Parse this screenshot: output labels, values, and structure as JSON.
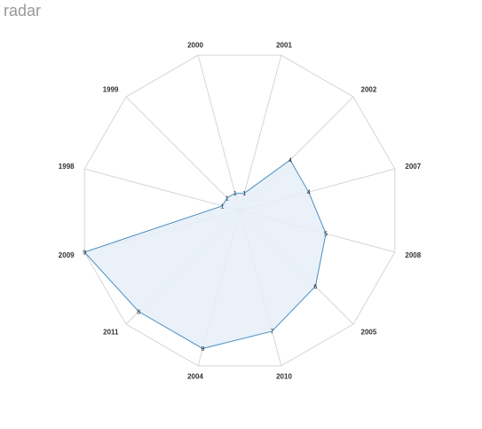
{
  "title": "radar",
  "chart_data": {
    "type": "radar",
    "title": "radar",
    "categories": [
      "2000",
      "2001",
      "2002",
      "2007",
      "2008",
      "2005",
      "2010",
      "2004",
      "2011",
      "2009",
      "1998",
      "1999"
    ],
    "series": [
      {
        "values": [
          1,
          1,
          4,
          4,
          5,
          6,
          7,
          8,
          8,
          9,
          1,
          1
        ]
      }
    ],
    "rmax": 9,
    "grid": true,
    "colors": {
      "line": "#4a90c2",
      "fill": "#e6eff8",
      "grid": "#d6d6d6",
      "title": "#999999",
      "label": "#333333"
    }
  }
}
